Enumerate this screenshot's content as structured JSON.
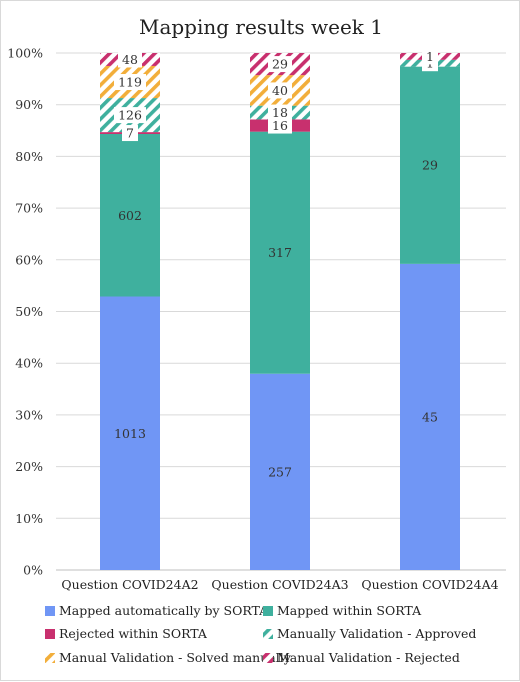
{
  "chart_data": {
    "type": "bar",
    "stacked": "percent",
    "title": "Mapping results week 1",
    "categories": [
      "Question COVID24A2",
      "Question COVID24A3",
      "Question COVID24A4"
    ],
    "y_ticks": [
      "0%",
      "10%",
      "20%",
      "30%",
      "40%",
      "50%",
      "60%",
      "70%",
      "80%",
      "90%",
      "100%"
    ],
    "ylim": [
      0,
      100
    ],
    "grid": true,
    "legend_position": "bottom",
    "series": [
      {
        "name": "Mapped automatically by SORTA",
        "values": [
          1013,
          257,
          45
        ],
        "color": "#7096f5",
        "pattern": "solid"
      },
      {
        "name": "Mapped within SORTA",
        "values": [
          602,
          317,
          29
        ],
        "color": "#3fb09e",
        "pattern": "solid"
      },
      {
        "name": "Rejected within SORTA",
        "values": [
          7,
          16,
          0
        ],
        "color": "#c8306e",
        "pattern": "solid"
      },
      {
        "name": "Manually Validation - Approved",
        "values": [
          126,
          18,
          1
        ],
        "color": "#3fb09e",
        "pattern": "hatch"
      },
      {
        "name": "Manual Validation - Solved manually",
        "values": [
          119,
          40,
          0
        ],
        "color": "#f2ae3a",
        "pattern": "hatch"
      },
      {
        "name": "Manual Validation - Rejected",
        "values": [
          48,
          29,
          1
        ],
        "color": "#c8306e",
        "pattern": "hatch"
      }
    ],
    "data_labels": [
      [
        "1013",
        "602",
        "7",
        "126",
        "119",
        "48"
      ],
      [
        "257",
        "317",
        "16",
        "18",
        "40",
        "29"
      ],
      [
        "45",
        "29",
        "",
        "1",
        "",
        "1"
      ]
    ]
  }
}
